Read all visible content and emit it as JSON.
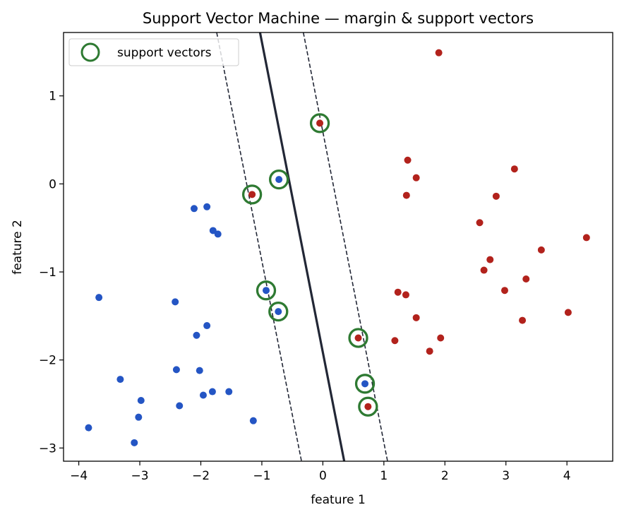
{
  "chart_data": {
    "type": "scatter",
    "title": "Support Vector Machine — margin & support vectors",
    "xlabel": "feature 1",
    "ylabel": "feature 2",
    "xlim": [
      -4.25,
      4.75
    ],
    "ylim": [
      -3.15,
      1.72
    ],
    "xticks": [
      -4,
      -3,
      -2,
      -1,
      0,
      1,
      2,
      3,
      4
    ],
    "yticks": [
      -3,
      -2,
      -1,
      0,
      1
    ],
    "grid": false,
    "legend_position": "top-left",
    "legend": [
      {
        "label": "support vectors",
        "marker": "hollow-circle",
        "color": "#2e7a32"
      }
    ],
    "colors": {
      "class_blue": "#2455c4",
      "class_red": "#b2221c",
      "support_vector_ring": "#2e7a32",
      "decision_boundary": "#222736",
      "margin": "#222736"
    },
    "decision_boundary": {
      "style": "solid",
      "x_at_y_top": -1.03,
      "x_at_y_bottom": 0.35
    },
    "margins": [
      {
        "style": "dashed",
        "x_at_y_top": -1.74,
        "x_at_y_bottom": -0.35
      },
      {
        "style": "dashed",
        "x_at_y_top": -0.32,
        "x_at_y_bottom": 1.06
      }
    ],
    "series": [
      {
        "name": "",
        "color": "#2455c4",
        "points": [
          [
            -3.84,
            -2.77
          ],
          [
            -3.67,
            -1.29
          ],
          [
            -3.32,
            -2.22
          ],
          [
            -3.09,
            -2.94
          ],
          [
            -3.02,
            -2.65
          ],
          [
            -2.98,
            -2.46
          ],
          [
            -2.42,
            -1.34
          ],
          [
            -2.4,
            -2.11
          ],
          [
            -2.35,
            -2.52
          ],
          [
            -2.11,
            -0.28
          ],
          [
            -2.07,
            -1.72
          ],
          [
            -2.02,
            -2.12
          ],
          [
            -1.96,
            -2.4
          ],
          [
            -1.9,
            -0.26
          ],
          [
            -1.9,
            -1.61
          ],
          [
            -1.81,
            -2.36
          ],
          [
            -1.8,
            -0.53
          ],
          [
            -1.72,
            -0.57
          ],
          [
            -1.54,
            -2.36
          ],
          [
            -1.14,
            -2.69
          ],
          [
            -0.93,
            -1.21
          ],
          [
            -0.73,
            -1.45
          ],
          [
            -0.72,
            0.05
          ],
          [
            0.69,
            -2.27
          ]
        ]
      },
      {
        "name": "",
        "color": "#b2221c",
        "points": [
          [
            -1.16,
            -0.12
          ],
          [
            -0.05,
            0.69
          ],
          [
            0.58,
            -1.75
          ],
          [
            0.74,
            -2.53
          ],
          [
            1.18,
            -1.78
          ],
          [
            1.23,
            -1.23
          ],
          [
            1.36,
            -1.26
          ],
          [
            1.37,
            -0.13
          ],
          [
            1.39,
            0.27
          ],
          [
            1.53,
            0.07
          ],
          [
            1.53,
            -1.52
          ],
          [
            1.75,
            -1.9
          ],
          [
            1.9,
            1.49
          ],
          [
            1.93,
            -1.75
          ],
          [
            2.57,
            -0.44
          ],
          [
            2.64,
            -0.98
          ],
          [
            2.74,
            -0.86
          ],
          [
            2.84,
            -0.14
          ],
          [
            2.98,
            -1.21
          ],
          [
            3.14,
            0.17
          ],
          [
            3.27,
            -1.55
          ],
          [
            3.33,
            -1.08
          ],
          [
            3.58,
            -0.75
          ],
          [
            4.02,
            -1.46
          ],
          [
            4.32,
            -0.61
          ]
        ]
      }
    ],
    "support_vectors": [
      [
        -0.05,
        0.69
      ],
      [
        -0.72,
        0.05
      ],
      [
        -1.16,
        -0.12
      ],
      [
        -0.93,
        -1.21
      ],
      [
        -0.73,
        -1.45
      ],
      [
        0.58,
        -1.75
      ],
      [
        0.69,
        -2.27
      ],
      [
        0.74,
        -2.53
      ]
    ]
  }
}
